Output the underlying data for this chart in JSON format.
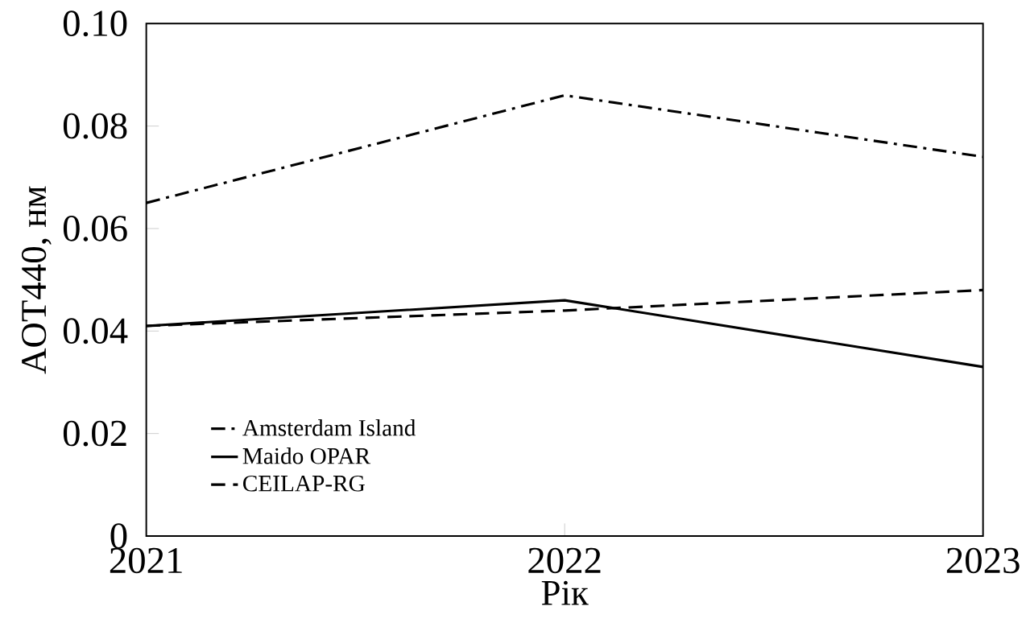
{
  "chart_data": {
    "type": "line",
    "xlabel": "Рік",
    "ylabel": "AOT440, нм",
    "x": [
      2021,
      2022,
      2023
    ],
    "series": [
      {
        "name": "Amsterdam Island",
        "color": "#000000",
        "line_style": "dashdot",
        "values": [
          0.065,
          0.086,
          0.074
        ]
      },
      {
        "name": "Maido OPAR",
        "color": "#000000",
        "line_style": "solid",
        "values": [
          0.041,
          0.046,
          0.033
        ]
      },
      {
        "name": "CEILAP-RG",
        "color": "#000000",
        "line_style": "dashed",
        "values": [
          0.041,
          0.044,
          0.048
        ]
      }
    ],
    "xlim": [
      2021,
      2023
    ],
    "ylim": [
      0,
      0.1
    ],
    "xticks": [
      2021,
      2022,
      2023
    ],
    "yticks": [
      0,
      0.02,
      0.04,
      0.06,
      0.08,
      {
        "value": 0.1,
        "label": "0.10"
      }
    ],
    "grid": false,
    "legend": "bottom left",
    "marker": "none"
  }
}
